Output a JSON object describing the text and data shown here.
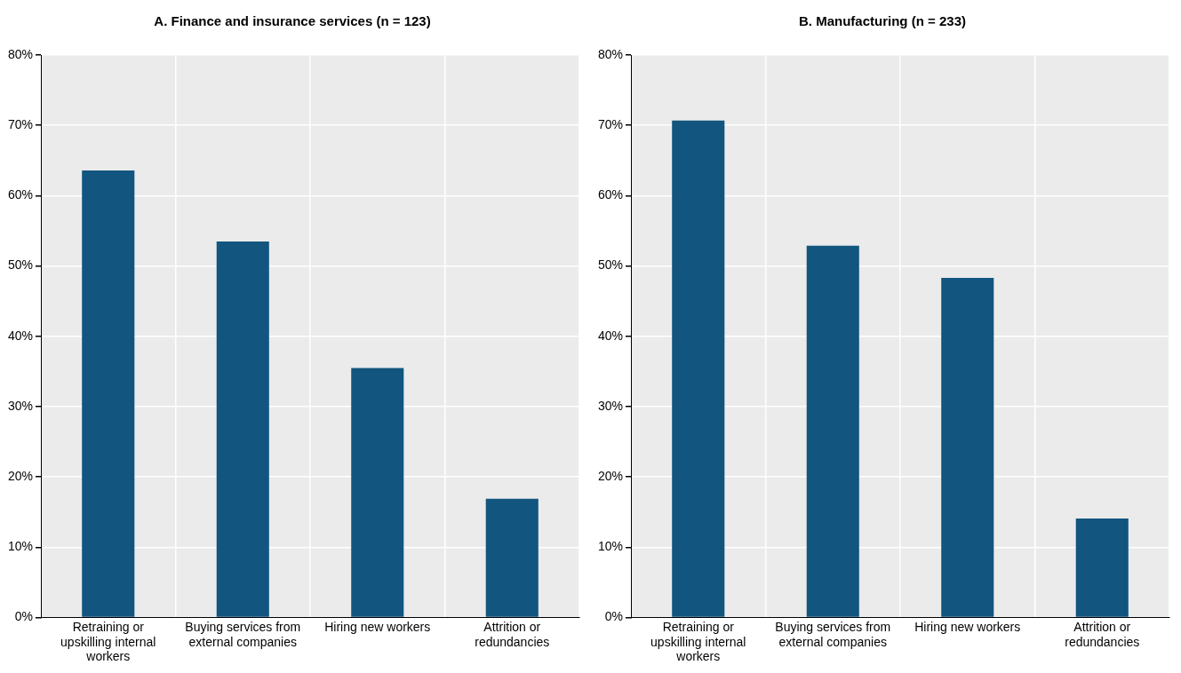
{
  "chart_data": [
    {
      "type": "bar",
      "title": "A. Finance and insurance services (n = 123)",
      "categories": [
        "Retraining or upskilling internal workers",
        "Buying services from external companies",
        "Hiring new workers",
        "Attrition or redundancies"
      ],
      "values": [
        63.6,
        53.5,
        35.5,
        16.9
      ],
      "color": "#12557f",
      "ylim": [
        0,
        80
      ],
      "yticks": [
        {
          "value": 0,
          "label": "0%"
        },
        {
          "value": 10,
          "label": "10%"
        },
        {
          "value": 20,
          "label": "20%"
        },
        {
          "value": 30,
          "label": "30%"
        },
        {
          "value": 40,
          "label": "40%"
        },
        {
          "value": 50,
          "label": "50%"
        },
        {
          "value": 60,
          "label": "60%"
        },
        {
          "value": 70,
          "label": "70%"
        },
        {
          "value": 80,
          "label": "80%"
        }
      ],
      "grid": true
    },
    {
      "type": "bar",
      "title": "B. Manufacturing (n = 233)",
      "categories": [
        "Retraining or upskilling internal workers",
        "Buying services from external companies",
        "Hiring new workers",
        "Attrition or redundancies"
      ],
      "values": [
        70.7,
        52.9,
        48.3,
        14.1
      ],
      "color": "#12557f",
      "ylim": [
        0,
        80
      ],
      "yticks": [
        {
          "value": 0,
          "label": "0%"
        },
        {
          "value": 10,
          "label": "10%"
        },
        {
          "value": 20,
          "label": "20%"
        },
        {
          "value": 30,
          "label": "30%"
        },
        {
          "value": 40,
          "label": "40%"
        },
        {
          "value": 50,
          "label": "50%"
        },
        {
          "value": 60,
          "label": "60%"
        },
        {
          "value": 70,
          "label": "70%"
        },
        {
          "value": 80,
          "label": "80%"
        }
      ],
      "grid": true
    }
  ]
}
